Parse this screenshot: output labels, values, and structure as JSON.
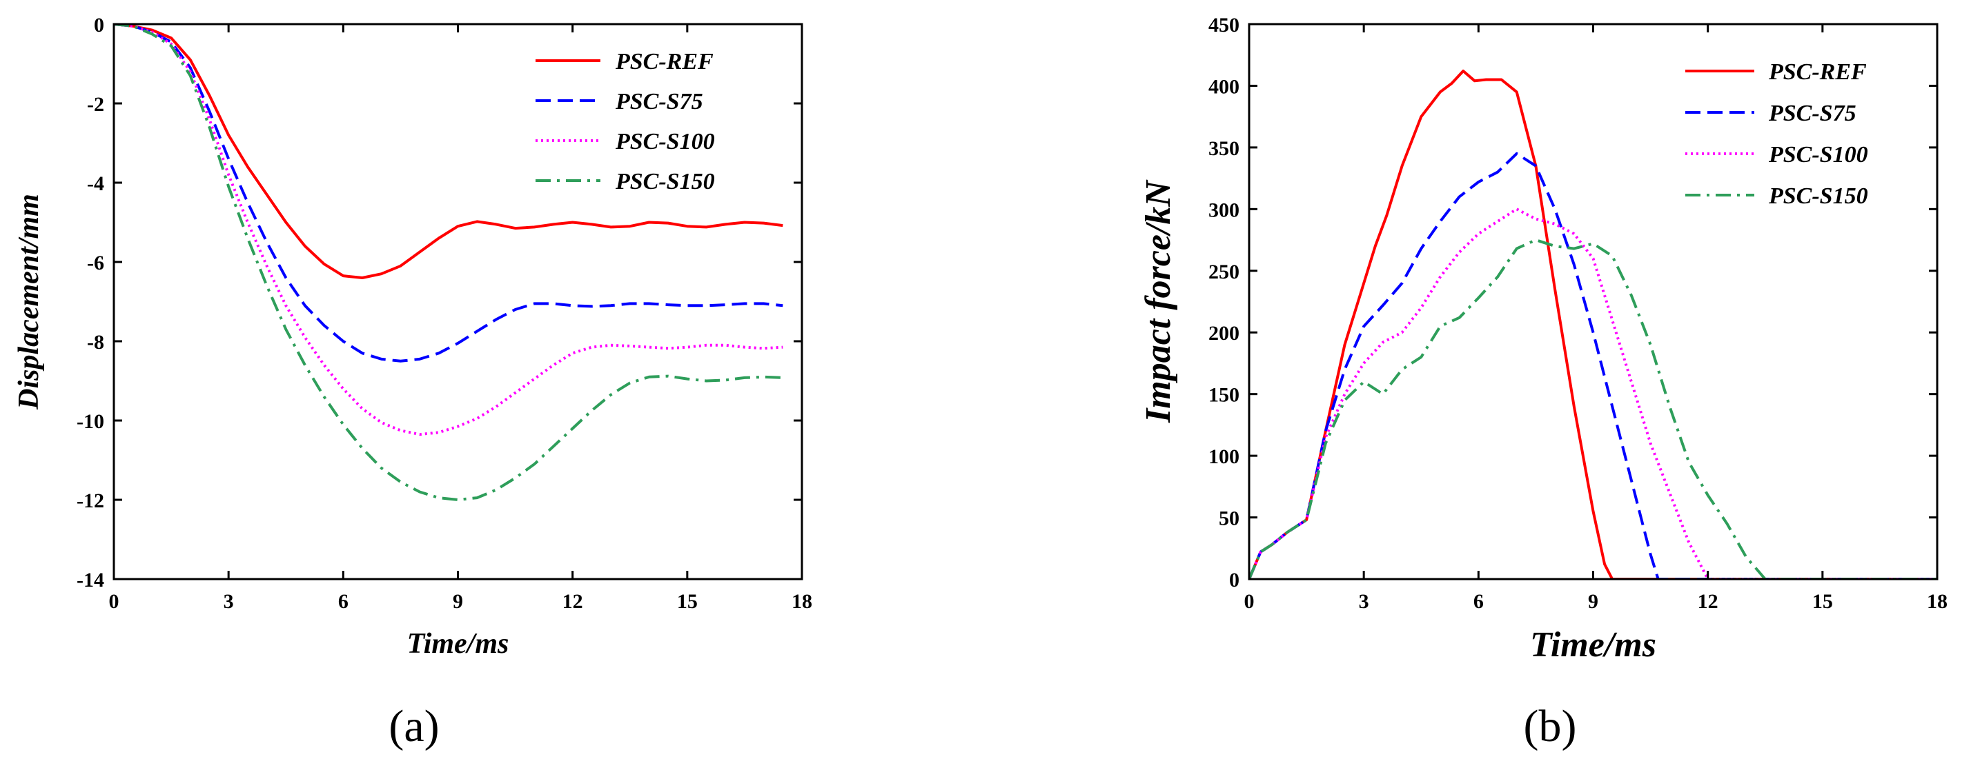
{
  "chart_data": [
    {
      "type": "line",
      "panel_label": "(a)",
      "xlabel": "Time/ms",
      "ylabel": "Displacement/mm",
      "xlim": [
        0,
        18
      ],
      "ylim": [
        -14,
        0
      ],
      "xticks": [
        0,
        3,
        6,
        9,
        12,
        15,
        18
      ],
      "yticks": [
        0,
        -2,
        -4,
        -6,
        -8,
        -10,
        -12,
        -14
      ],
      "grid": false,
      "legend_position": "top-right",
      "series": [
        {
          "name": "PSC-REF",
          "color": "#ff0000",
          "dash": "solid",
          "x": [
            0,
            0.5,
            1,
            1.5,
            2,
            2.5,
            3,
            3.5,
            4,
            4.5,
            5,
            5.5,
            6,
            6.5,
            7,
            7.5,
            8,
            8.5,
            9,
            9.5,
            10,
            10.5,
            11,
            11.5,
            12,
            12.5,
            13,
            13.5,
            14,
            14.5,
            15,
            15.5,
            16,
            16.5,
            17,
            17.5
          ],
          "y": [
            0,
            -0.05,
            -0.15,
            -0.35,
            -0.9,
            -1.8,
            -2.8,
            -3.6,
            -4.3,
            -5.0,
            -5.6,
            -6.05,
            -6.35,
            -6.4,
            -6.3,
            -6.1,
            -5.75,
            -5.4,
            -5.1,
            -4.98,
            -5.05,
            -5.15,
            -5.12,
            -5.05,
            -5.0,
            -5.05,
            -5.12,
            -5.1,
            -5.0,
            -5.02,
            -5.1,
            -5.12,
            -5.05,
            -5.0,
            -5.02,
            -5.08
          ]
        },
        {
          "name": "PSC-S75",
          "color": "#0000ff",
          "dash": "dashed",
          "x": [
            0,
            0.5,
            1,
            1.5,
            2,
            2.5,
            3,
            3.5,
            4,
            4.5,
            5,
            5.5,
            6,
            6.5,
            7,
            7.5,
            8,
            8.5,
            9,
            9.5,
            10,
            10.5,
            11,
            11.5,
            12,
            12.5,
            13,
            13.5,
            14,
            14.5,
            15,
            15.5,
            16,
            16.5,
            17,
            17.5
          ],
          "y": [
            0,
            -0.05,
            -0.2,
            -0.45,
            -1.1,
            -2.2,
            -3.4,
            -4.5,
            -5.5,
            -6.4,
            -7.1,
            -7.6,
            -8.0,
            -8.3,
            -8.45,
            -8.5,
            -8.45,
            -8.3,
            -8.05,
            -7.75,
            -7.45,
            -7.2,
            -7.05,
            -7.05,
            -7.1,
            -7.12,
            -7.1,
            -7.05,
            -7.05,
            -7.08,
            -7.1,
            -7.1,
            -7.08,
            -7.05,
            -7.05,
            -7.1
          ]
        },
        {
          "name": "PSC-S100",
          "color": "#ff00ff",
          "dash": "dotted",
          "x": [
            0,
            0.5,
            1,
            1.5,
            2,
            2.5,
            3,
            3.5,
            4,
            4.5,
            5,
            5.5,
            6,
            6.5,
            7,
            7.5,
            8,
            8.5,
            9,
            9.5,
            10,
            10.5,
            11,
            11.5,
            12,
            12.5,
            13,
            13.5,
            14,
            14.5,
            15,
            15.5,
            16,
            16.5,
            17,
            17.5
          ],
          "y": [
            0,
            -0.05,
            -0.2,
            -0.5,
            -1.2,
            -2.4,
            -3.8,
            -5.0,
            -6.1,
            -7.1,
            -7.9,
            -8.6,
            -9.2,
            -9.7,
            -10.05,
            -10.25,
            -10.35,
            -10.3,
            -10.15,
            -9.95,
            -9.65,
            -9.3,
            -8.95,
            -8.6,
            -8.3,
            -8.15,
            -8.1,
            -8.12,
            -8.15,
            -8.18,
            -8.15,
            -8.1,
            -8.1,
            -8.15,
            -8.18,
            -8.15
          ]
        },
        {
          "name": "PSC-S150",
          "color": "#2e9e5a",
          "dash": "dashdot",
          "x": [
            0,
            0.5,
            1,
            1.5,
            2,
            2.5,
            3,
            3.5,
            4,
            4.5,
            5,
            5.5,
            6,
            6.5,
            7,
            7.5,
            8,
            8.5,
            9,
            9.5,
            10,
            10.5,
            11,
            11.5,
            12,
            12.5,
            13,
            13.5,
            14,
            14.5,
            15,
            15.5,
            16,
            16.5,
            17,
            17.5
          ],
          "y": [
            0,
            -0.05,
            -0.25,
            -0.55,
            -1.3,
            -2.6,
            -4.1,
            -5.4,
            -6.6,
            -7.7,
            -8.6,
            -9.4,
            -10.1,
            -10.7,
            -11.2,
            -11.55,
            -11.8,
            -11.95,
            -12.0,
            -11.95,
            -11.75,
            -11.45,
            -11.1,
            -10.65,
            -10.2,
            -9.75,
            -9.35,
            -9.05,
            -8.9,
            -8.88,
            -8.95,
            -9.0,
            -8.98,
            -8.92,
            -8.9,
            -8.92
          ]
        }
      ]
    },
    {
      "type": "line",
      "panel_label": "(b)",
      "xlabel": "Time/ms",
      "ylabel": "Impact force/kN",
      "xlim": [
        0,
        18
      ],
      "ylim": [
        0,
        450
      ],
      "xticks": [
        0,
        3,
        6,
        9,
        12,
        15,
        18
      ],
      "yticks": [
        0,
        50,
        100,
        150,
        200,
        250,
        300,
        350,
        400,
        450
      ],
      "grid": false,
      "legend_position": "top-right",
      "series": [
        {
          "name": "PSC-REF",
          "color": "#ff0000",
          "dash": "solid",
          "x": [
            0,
            0.3,
            0.6,
            1.0,
            1.5,
            2.0,
            2.5,
            3.0,
            3.3,
            3.6,
            4.0,
            4.5,
            5.0,
            5.3,
            5.6,
            5.9,
            6.2,
            6.6,
            7.0,
            7.5,
            8.0,
            8.5,
            9.0,
            9.3,
            9.5,
            10,
            12,
            15,
            18
          ],
          "y": [
            0,
            22,
            28,
            38,
            48,
            120,
            190,
            240,
            270,
            295,
            335,
            375,
            395,
            402,
            412,
            404,
            405,
            405,
            395,
            335,
            235,
            140,
            55,
            12,
            0,
            0,
            0,
            0,
            0
          ]
        },
        {
          "name": "PSC-S75",
          "color": "#0000ff",
          "dash": "dashed",
          "x": [
            0,
            0.3,
            0.6,
            1.0,
            1.5,
            2.0,
            2.5,
            3.0,
            3.5,
            4.0,
            4.5,
            5.0,
            5.5,
            6.0,
            6.5,
            7.0,
            7.5,
            8.0,
            8.5,
            9.0,
            9.5,
            10.0,
            10.5,
            10.7,
            12,
            15,
            18
          ],
          "y": [
            0,
            22,
            28,
            38,
            48,
            120,
            170,
            205,
            222,
            240,
            268,
            290,
            310,
            322,
            330,
            345,
            335,
            300,
            255,
            200,
            140,
            80,
            20,
            0,
            0,
            0,
            0
          ]
        },
        {
          "name": "PSC-S100",
          "color": "#ff00ff",
          "dash": "dotted",
          "x": [
            0,
            0.3,
            0.6,
            1.0,
            1.5,
            2.0,
            2.5,
            3.0,
            3.5,
            4.0,
            4.5,
            5.0,
            5.5,
            6.0,
            6.5,
            7.0,
            7.5,
            8.0,
            8.5,
            9.0,
            9.5,
            10.0,
            10.5,
            11.0,
            11.5,
            12.0,
            15,
            18
          ],
          "y": [
            0,
            22,
            28,
            38,
            48,
            115,
            150,
            175,
            192,
            200,
            220,
            245,
            265,
            280,
            290,
            300,
            292,
            288,
            280,
            260,
            210,
            160,
            110,
            70,
            30,
            0,
            0,
            0
          ]
        },
        {
          "name": "PSC-S150",
          "color": "#2e9e5a",
          "dash": "dashdot",
          "x": [
            0,
            0.3,
            0.6,
            1.0,
            1.5,
            2.0,
            2.5,
            3.0,
            3.5,
            4.0,
            4.5,
            5.0,
            5.5,
            6.0,
            6.5,
            7.0,
            7.5,
            8.0,
            8.5,
            9.0,
            9.5,
            10.0,
            10.5,
            11.0,
            11.5,
            12.0,
            12.5,
            13.0,
            13.5,
            15,
            18
          ],
          "y": [
            0,
            22,
            28,
            38,
            48,
            110,
            145,
            160,
            150,
            170,
            180,
            205,
            212,
            228,
            245,
            268,
            275,
            270,
            268,
            272,
            262,
            230,
            190,
            140,
            95,
            68,
            45,
            18,
            0,
            0,
            0
          ]
        }
      ]
    }
  ]
}
